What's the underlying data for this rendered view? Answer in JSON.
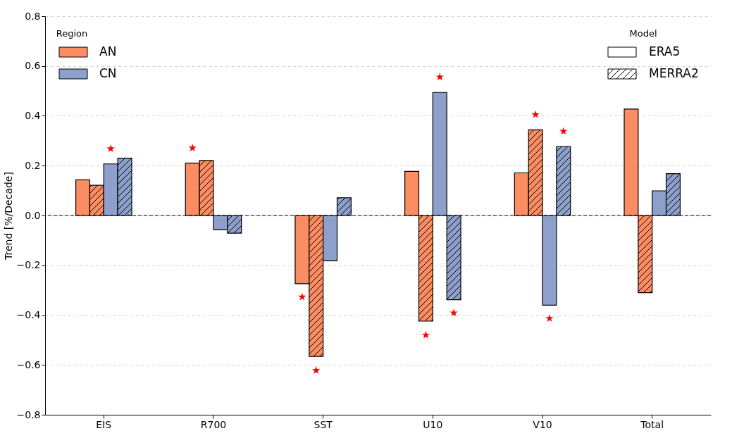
{
  "chart_data": {
    "type": "bar",
    "categories": [
      "EIS",
      "R700",
      "SST",
      "U10",
      "V10",
      "Total"
    ],
    "ylabel": "Trend [%/Decade]",
    "ylim": [
      -0.8,
      0.8
    ],
    "yticks": [
      {
        "value": -0.8,
        "label": "−0.8"
      },
      {
        "value": -0.6,
        "label": "−0.6"
      },
      {
        "value": -0.4,
        "label": "−0.4"
      },
      {
        "value": -0.2,
        "label": "−0.2"
      },
      {
        "value": 0,
        "label": "0.0"
      },
      {
        "value": 0.2,
        "label": "0.2"
      },
      {
        "value": 0.4,
        "label": "0.4"
      },
      {
        "value": 0.6,
        "label": "0.6"
      },
      {
        "value": 0.8,
        "label": "0.8"
      }
    ],
    "grid": "y",
    "legend": "top left",
    "legend_title": [
      "Region",
      "Model"
    ],
    "annotations": [
      "ERA5",
      "MERRA2"
    ],
    "ref_lines": [
      {
        "axis": "y",
        "value": 0,
        "color": "#000000",
        "line_style": "dashed"
      }
    ],
    "series": [
      {
        "name": "AN",
        "color": "#fc8d62",
        "values": [
          0.143,
          0.21,
          -0.274,
          0.177,
          0.171,
          0.427
        ]
      },
      {
        "color": "#fc8d62",
        "values": [
          0.121,
          0.221,
          -0.566,
          -0.424,
          0.344,
          -0.31
        ]
      },
      {
        "name": "CN",
        "color": "#8da0cb",
        "values": [
          0.207,
          -0.057,
          -0.182,
          0.494,
          -0.36,
          0.099
        ]
      },
      {
        "color": "#8da0cb",
        "values": [
          0.23,
          -0.071,
          0.071,
          -0.338,
          0.277,
          0.168
        ]
      },
      {
        "type": "scatter",
        "marker": "star",
        "color": "#ff0000",
        "values": [
          null,
          0.271,
          -0.327,
          null,
          null,
          null
        ]
      },
      {
        "type": "scatter",
        "marker": "star",
        "color": "#ff0000",
        "values": [
          null,
          null,
          -0.622,
          -0.48,
          0.405,
          null
        ]
      },
      {
        "type": "scatter",
        "marker": "star",
        "color": "#ff0000",
        "values": [
          0.268,
          null,
          null,
          0.556,
          -0.413,
          null
        ]
      },
      {
        "type": "scatter",
        "marker": "star",
        "color": "#ff0000",
        "values": [
          null,
          null,
          null,
          -0.391,
          0.338,
          null
        ]
      }
    ]
  }
}
